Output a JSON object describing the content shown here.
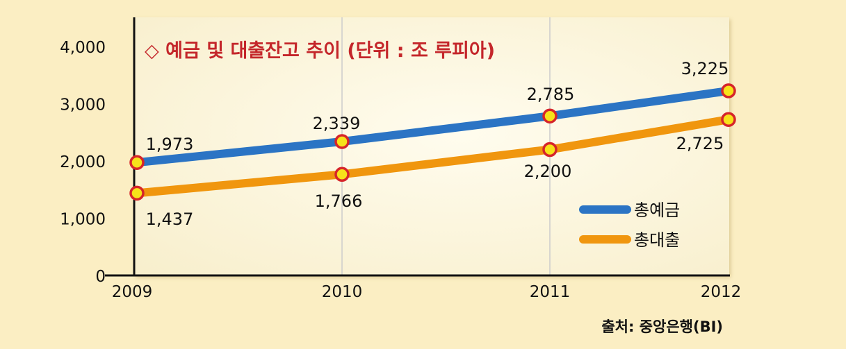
{
  "chart_data": {
    "type": "line",
    "title": "◇ 예금 및 대출잔고 추이 (단위 : 조 루피아)",
    "source": "출처: 중앙은행(BI)",
    "categories": [
      "2009",
      "2010",
      "2011",
      "2012"
    ],
    "y_ticks": [
      "0",
      "1,000",
      "2,000",
      "3,000",
      "4,000"
    ],
    "ylim": [
      0,
      4400
    ],
    "grid": "vertical",
    "legend_position": "bottom-right",
    "series": [
      {
        "name": "총예금",
        "color": "#2b74c4",
        "values": [
          1973,
          2339,
          2785,
          3225
        ],
        "labels": [
          "1,973",
          "2,339",
          "2,785",
          "3,225"
        ]
      },
      {
        "name": "총대출",
        "color": "#f0960e",
        "values": [
          1437,
          1766,
          2200,
          2725
        ],
        "labels": [
          "1,437",
          "1,766",
          "2,200",
          "2,725"
        ]
      }
    ],
    "colors": {
      "page_background": "#fbeec3",
      "plot_background": "#fdf8e2",
      "title": "#c4262a",
      "marker_fill": "#f7e21a",
      "marker_stroke": "#d6252a"
    }
  }
}
